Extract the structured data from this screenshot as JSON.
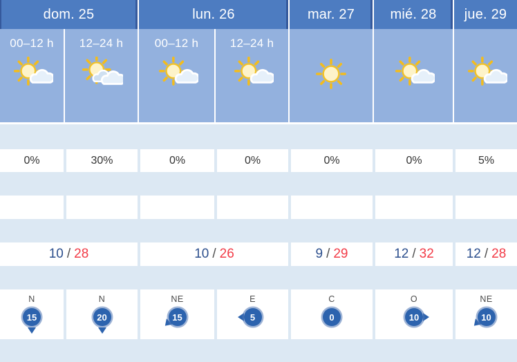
{
  "colors": {
    "header_bg": "#4d7cc1",
    "header_divider": "#35599c",
    "sky_bg": "#93b1de",
    "band_bg": "#dce8f3",
    "cell_bg": "#ffffff",
    "day_text": "#ffffff",
    "period_text": "#ffffff",
    "precip_text": "#333333",
    "temp_min": "#2c4f8d",
    "temp_sep": "#4d4d4d",
    "temp_max": "#f23b47",
    "wind_dir_text": "#4a4a4a",
    "wind_ball": "#2c63ae",
    "sun_ray": "#f3bc1d",
    "sun_fill": "#fdf3c9",
    "sun_stroke": "#f2c227",
    "cloud_fill": "#e6f0fa",
    "cloud_back_fill": "#cfe0f1",
    "cloud_stroke": "#ffffff"
  },
  "labels": {
    "temp_separator": "/"
  },
  "days": [
    {
      "label": "dom. 25",
      "span": 2
    },
    {
      "label": "lun. 26",
      "span": 2
    },
    {
      "label": "mar. 27",
      "span": 1
    },
    {
      "label": "mié. 28",
      "span": 1
    },
    {
      "label": "jue. 29",
      "span": 1
    }
  ],
  "columns": [
    {
      "day": "dom. 25",
      "period": "00–12 h",
      "icon": "sun-cloud",
      "precip": "0%",
      "wind": {
        "dir": "N",
        "speed": "15"
      }
    },
    {
      "day": "dom. 25",
      "period": "12–24 h",
      "icon": "sun-clouds",
      "precip": "30%",
      "wind": {
        "dir": "N",
        "speed": "20"
      }
    },
    {
      "day": "lun. 26",
      "period": "00–12 h",
      "icon": "sun-cloud",
      "precip": "0%",
      "wind": {
        "dir": "NE",
        "speed": "15"
      }
    },
    {
      "day": "lun. 26",
      "period": "12–24 h",
      "icon": "sun-cloud",
      "precip": "0%",
      "wind": {
        "dir": "E",
        "speed": "5"
      }
    },
    {
      "day": "mar. 27",
      "period": "",
      "icon": "sun",
      "precip": "0%",
      "wind": {
        "dir": "C",
        "speed": "0"
      }
    },
    {
      "day": "mié. 28",
      "period": "",
      "icon": "sun-cloud",
      "precip": "0%",
      "wind": {
        "dir": "O",
        "speed": "10"
      }
    },
    {
      "day": "jue. 29",
      "period": "",
      "icon": "sun-cloud",
      "precip": "5%",
      "wind": {
        "dir": "NE",
        "speed": "10"
      }
    }
  ],
  "temperatures": [
    {
      "day": "dom. 25",
      "min": "10",
      "max": "28",
      "span": 2
    },
    {
      "day": "lun. 26",
      "min": "10",
      "max": "26",
      "span": 2
    },
    {
      "day": "mar. 27",
      "min": "9",
      "max": "29",
      "span": 1
    },
    {
      "day": "mié. 28",
      "min": "12",
      "max": "32",
      "span": 1
    },
    {
      "day": "jue. 29",
      "min": "12",
      "max": "28",
      "span": 1
    }
  ]
}
